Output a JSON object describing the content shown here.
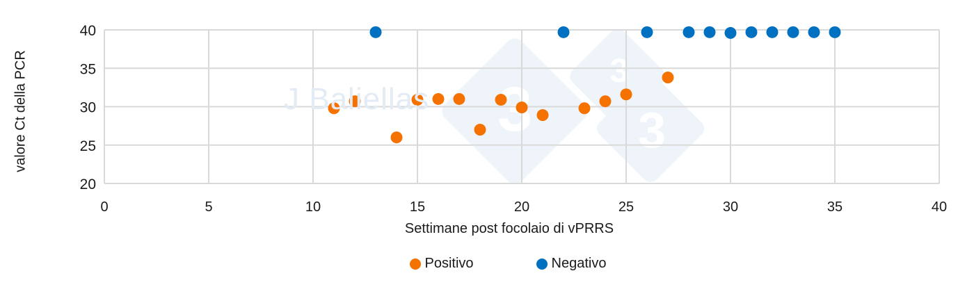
{
  "chart_data": {
    "type": "scatter",
    "title": "",
    "xlabel": "Settimane post focolaio di vPRRS",
    "ylabel": "valore Ct della PCR",
    "xlim": [
      0,
      40
    ],
    "ylim": [
      20,
      40
    ],
    "xticks": [
      0,
      5,
      10,
      15,
      20,
      25,
      30,
      35,
      40
    ],
    "yticks": [
      20,
      25,
      30,
      35,
      40
    ],
    "grid": true,
    "legend_position": "bottom",
    "series": [
      {
        "name": "Positivo",
        "color": "#F57200",
        "points": [
          {
            "x": 11,
            "y": 29.8
          },
          {
            "x": 12,
            "y": 30.7
          },
          {
            "x": 14,
            "y": 26.0
          },
          {
            "x": 15,
            "y": 30.9
          },
          {
            "x": 16,
            "y": 31.0
          },
          {
            "x": 17,
            "y": 31.0
          },
          {
            "x": 18,
            "y": 27.0
          },
          {
            "x": 19,
            "y": 30.9
          },
          {
            "x": 20,
            "y": 29.9
          },
          {
            "x": 21,
            "y": 28.9
          },
          {
            "x": 23,
            "y": 29.8
          },
          {
            "x": 24,
            "y": 30.7
          },
          {
            "x": 25,
            "y": 31.6
          },
          {
            "x": 27,
            "y": 33.8
          }
        ]
      },
      {
        "name": "Negativo",
        "color": "#0070C0",
        "points": [
          {
            "x": 13,
            "y": 39.7
          },
          {
            "x": 22,
            "y": 39.7
          },
          {
            "x": 26,
            "y": 39.7
          },
          {
            "x": 28,
            "y": 39.7
          },
          {
            "x": 29,
            "y": 39.7
          },
          {
            "x": 30,
            "y": 39.6
          },
          {
            "x": 31,
            "y": 39.7
          },
          {
            "x": 32,
            "y": 39.7
          },
          {
            "x": 33,
            "y": 39.7
          },
          {
            "x": 34,
            "y": 39.7
          },
          {
            "x": 35,
            "y": 39.7
          }
        ]
      }
    ]
  },
  "watermark": {
    "text": "J Baliellas",
    "logo_glyph": "3"
  },
  "legend": {
    "items": [
      {
        "label": "Positivo",
        "color": "#F57200"
      },
      {
        "label": "Negativo",
        "color": "#0070C0"
      }
    ]
  }
}
